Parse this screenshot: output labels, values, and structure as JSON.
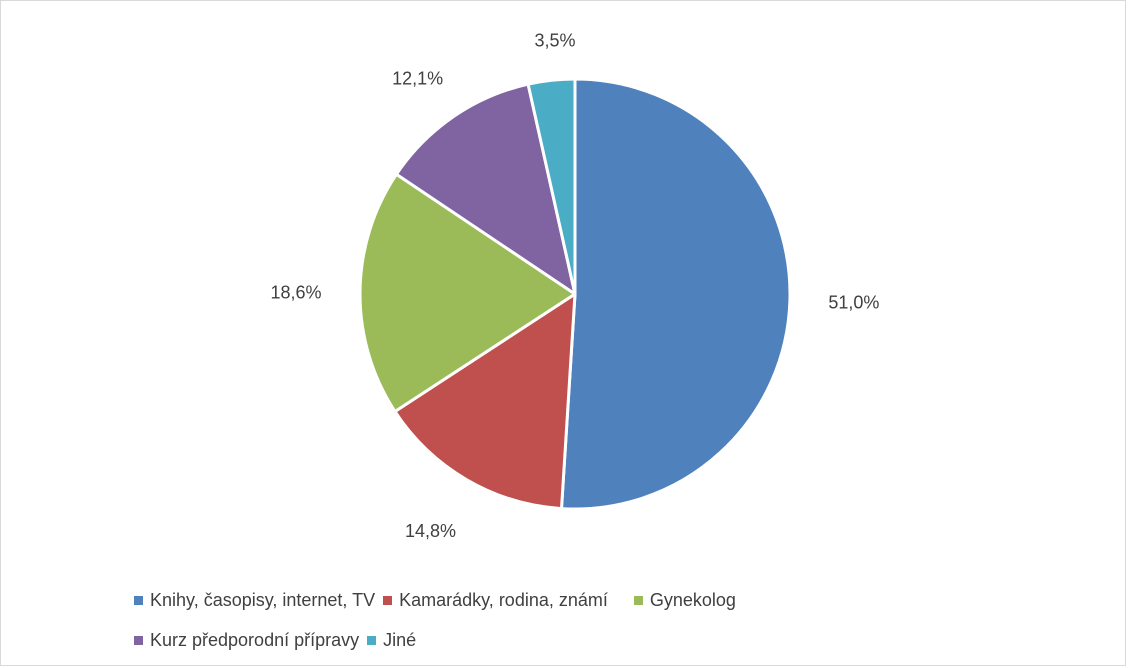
{
  "chart_data": {
    "type": "pie",
    "title": "",
    "categories": [
      "Knihy, časopisy, internet, TV",
      "Kamarádky, rodina, známí",
      "Gynekolog",
      "Kurz předporodní přípravy",
      "Jiné"
    ],
    "values": [
      51.0,
      14.8,
      18.6,
      12.1,
      3.5
    ],
    "labels": [
      "51,0%",
      "14,8%",
      "18,6%",
      "12,1%",
      "3,5%"
    ],
    "colors": [
      "#4f81bd",
      "#c0504d",
      "#9bbb59",
      "#8064a2",
      "#4bacc6"
    ],
    "start_angle": "12 o'clock, clockwise",
    "legend_position": "bottom"
  }
}
